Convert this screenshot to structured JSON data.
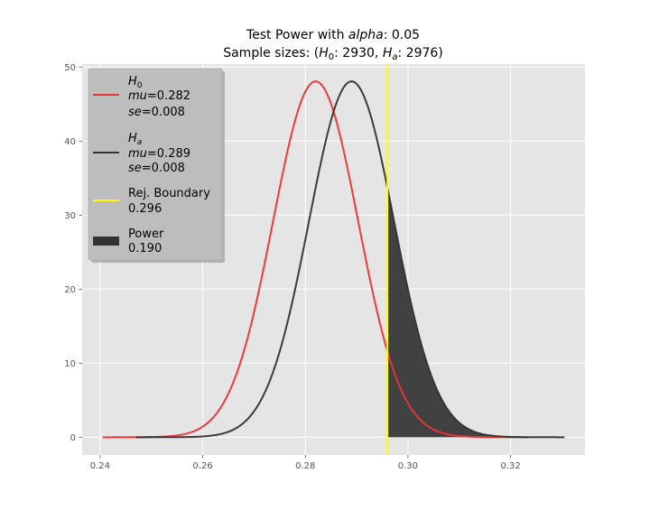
{
  "chart_data": {
    "type": "line",
    "title": "Test Power with alpha: 0.05",
    "title_parts": {
      "prefix": "Test Power with ",
      "alpha_symbol": "alpha",
      "alpha_value": ": 0.05"
    },
    "subtitle_parts": {
      "prefix": "Sample sizes: (",
      "h0_symbol": "H",
      "h0_sub": "0",
      "h0_value": ": 2930, ",
      "ha_symbol": "H",
      "ha_sub": "a",
      "ha_value": ": 2976)"
    },
    "xlabel": "",
    "ylabel": "",
    "xlim": [
      0.2365,
      0.3345
    ],
    "ylim": [
      -2.4,
      50.4
    ],
    "x_ticks": [
      0.24,
      0.26,
      0.28,
      0.3,
      0.32
    ],
    "x_tick_labels": [
      "0.24",
      "0.26",
      "0.28",
      "0.30",
      "0.32"
    ],
    "y_ticks": [
      0,
      10,
      20,
      30,
      40,
      50
    ],
    "y_tick_labels": [
      "0",
      "10",
      "20",
      "30",
      "40",
      "50"
    ],
    "grid": true,
    "legend_placement": "upper-left",
    "series": [
      {
        "name": "H0",
        "mu": 0.282,
        "se": 0.0083,
        "x_range": [
          0.2405,
          0.3235
        ],
        "color": "#ee3333",
        "legend": {
          "symbol": "H",
          "sub": "0",
          "mu_label": "mu",
          "mu_value": "=0.282",
          "se_label": "se",
          "se_value": "=0.008"
        }
      },
      {
        "name": "Ha",
        "mu": 0.289,
        "se": 0.0083,
        "x_range": [
          0.247,
          0.3305
        ],
        "color": "#333333",
        "legend": {
          "symbol": "H",
          "sub": "a",
          "mu_label": "mu",
          "mu_value": "=0.289",
          "se_label": "se",
          "se_value": "=0.008"
        }
      }
    ],
    "rejection_boundary": {
      "x": 0.296,
      "color": "#ffff00",
      "label": "Rej. Boundary",
      "value": "0.296"
    },
    "power": {
      "value": 0.19,
      "label": "Power",
      "value_label": "0.190",
      "color": "#333333"
    }
  }
}
